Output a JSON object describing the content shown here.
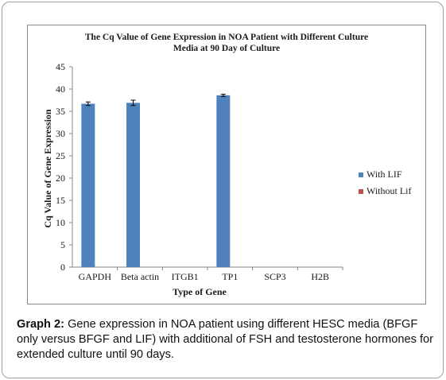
{
  "chart_data": {
    "type": "bar",
    "title_line1": "The Cq Value of Gene Expression in NOA Patient with Different Culture",
    "title_line2": "Media at 90 Day of Culture",
    "xlabel": "Type of Gene",
    "ylabel": "Cq Value of Gene Expression",
    "ylim": [
      0,
      45
    ],
    "yticks": [
      "0",
      "5",
      "10",
      "15",
      "20",
      "25",
      "30",
      "35",
      "40",
      "45"
    ],
    "categories": [
      "GAPDH",
      "Beta actin",
      "ITGB1",
      "TP1",
      "SCP3",
      "H2B"
    ],
    "series": [
      {
        "name": "With LIF",
        "color": "#4f81bd",
        "values": [
          36.7,
          36.9,
          0,
          38.6,
          0,
          0
        ],
        "errors": [
          0.4,
          0.6,
          0,
          0.25,
          0,
          0
        ]
      },
      {
        "name": "Without Lif",
        "color": "#c0504d",
        "values": [
          0,
          0,
          0,
          0,
          0,
          0
        ],
        "errors": [
          0,
          0,
          0,
          0,
          0,
          0
        ]
      }
    ],
    "legend_position": "right",
    "grid": false
  },
  "caption": {
    "label": "Graph 2:",
    "text": " Gene expression in NOA patient using different HESC media (BFGF only versus BFGF and LIF) with additional of FSH and testosterone hormones for extended culture until 90 days."
  }
}
